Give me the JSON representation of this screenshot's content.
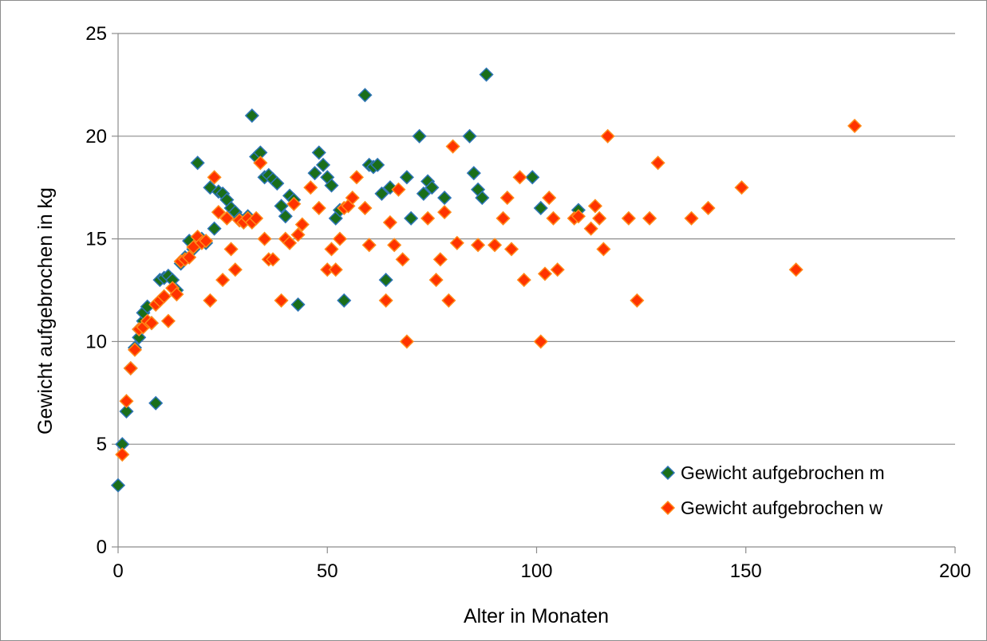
{
  "chart_data": {
    "type": "scatter",
    "title": "",
    "xlabel": "Alter in Monaten",
    "ylabel": "Gewicht aufgebrochen in kg",
    "xlim": [
      0,
      200
    ],
    "ylim": [
      0,
      25
    ],
    "xticks": [
      0,
      50,
      100,
      150,
      200
    ],
    "yticks": [
      0,
      5,
      10,
      15,
      20,
      25
    ],
    "grid": "horizontal",
    "legend_position": "bottom-right",
    "marker": "diamond",
    "series": [
      {
        "name": "Gewicht aufgebrochen m",
        "color": "#1a6e1a",
        "stroke": "#2e75b6",
        "points": [
          [
            0,
            3
          ],
          [
            1,
            5
          ],
          [
            2,
            6.6
          ],
          [
            3,
            8.7
          ],
          [
            4,
            9.7
          ],
          [
            5,
            10.2
          ],
          [
            5,
            10.6
          ],
          [
            6,
            11
          ],
          [
            6,
            11.4
          ],
          [
            7,
            11.7
          ],
          [
            8,
            10.9
          ],
          [
            9,
            7
          ],
          [
            10,
            13
          ],
          [
            11,
            13.1
          ],
          [
            12,
            13.2
          ],
          [
            13,
            13
          ],
          [
            14,
            12.5
          ],
          [
            15,
            13.8
          ],
          [
            16,
            14.1
          ],
          [
            17,
            14.9
          ],
          [
            18,
            14.5
          ],
          [
            19,
            18.7
          ],
          [
            20,
            15
          ],
          [
            21,
            14.8
          ],
          [
            22,
            17.5
          ],
          [
            23,
            15.5
          ],
          [
            24,
            17.3
          ],
          [
            25,
            17.2
          ],
          [
            26,
            16.9
          ],
          [
            27,
            16.5
          ],
          [
            28,
            16.3
          ],
          [
            29,
            16
          ],
          [
            30,
            15.8
          ],
          [
            31,
            16.1
          ],
          [
            32,
            21
          ],
          [
            33,
            19
          ],
          [
            34,
            19.2
          ],
          [
            35,
            18
          ],
          [
            36,
            18.1
          ],
          [
            37,
            17.9
          ],
          [
            38,
            17.7
          ],
          [
            39,
            16.6
          ],
          [
            40,
            16.1
          ],
          [
            41,
            17.1
          ],
          [
            42,
            16.9
          ],
          [
            43,
            11.8
          ],
          [
            47,
            18.2
          ],
          [
            48,
            19.2
          ],
          [
            49,
            18.6
          ],
          [
            50,
            18
          ],
          [
            51,
            17.6
          ],
          [
            52,
            16
          ],
          [
            53,
            16.4
          ],
          [
            54,
            12
          ],
          [
            59,
            22
          ],
          [
            60,
            18.6
          ],
          [
            61,
            18.5
          ],
          [
            62,
            18.6
          ],
          [
            63,
            17.2
          ],
          [
            64,
            13
          ],
          [
            65,
            17.5
          ],
          [
            69,
            18
          ],
          [
            70,
            16
          ],
          [
            72,
            20
          ],
          [
            73,
            17.2
          ],
          [
            74,
            17.8
          ],
          [
            75,
            17.5
          ],
          [
            78,
            17
          ],
          [
            84,
            20
          ],
          [
            85,
            18.2
          ],
          [
            86,
            17.4
          ],
          [
            87,
            17
          ],
          [
            88,
            23
          ],
          [
            99,
            18
          ],
          [
            101,
            16.5
          ],
          [
            110,
            16.4
          ]
        ]
      },
      {
        "name": "Gewicht aufgebrochen w",
        "color": "#ff3300",
        "stroke": "#ff8a1a",
        "points": [
          [
            1,
            4.5
          ],
          [
            2,
            7.1
          ],
          [
            3,
            8.7
          ],
          [
            4,
            9.6
          ],
          [
            5,
            10.6
          ],
          [
            6,
            10.7
          ],
          [
            7,
            11
          ],
          [
            8,
            10.9
          ],
          [
            9,
            11.8
          ],
          [
            10,
            12
          ],
          [
            11,
            12.2
          ],
          [
            12,
            11
          ],
          [
            13,
            12.6
          ],
          [
            14,
            12.3
          ],
          [
            15,
            13.9
          ],
          [
            16,
            14
          ],
          [
            17,
            14.1
          ],
          [
            18,
            14.6
          ],
          [
            19,
            15.1
          ],
          [
            20,
            14.8
          ],
          [
            21,
            14.9
          ],
          [
            22,
            12
          ],
          [
            23,
            18
          ],
          [
            24,
            16.3
          ],
          [
            25,
            13
          ],
          [
            26,
            16
          ],
          [
            27,
            14.5
          ],
          [
            28,
            13.5
          ],
          [
            29,
            15.9
          ],
          [
            30,
            15.8
          ],
          [
            31,
            16
          ],
          [
            32,
            15.8
          ],
          [
            33,
            16
          ],
          [
            34,
            18.7
          ],
          [
            35,
            15
          ],
          [
            36,
            14
          ],
          [
            37,
            14
          ],
          [
            39,
            12
          ],
          [
            40,
            15
          ],
          [
            41,
            14.8
          ],
          [
            42,
            16.7
          ],
          [
            43,
            15.2
          ],
          [
            44,
            15.7
          ],
          [
            46,
            17.5
          ],
          [
            48,
            16.5
          ],
          [
            50,
            13.5
          ],
          [
            51,
            14.5
          ],
          [
            52,
            13.5
          ],
          [
            53,
            15
          ],
          [
            54,
            16.5
          ],
          [
            55,
            16.6
          ],
          [
            56,
            17
          ],
          [
            57,
            18
          ],
          [
            59,
            16.5
          ],
          [
            60,
            14.7
          ],
          [
            64,
            12
          ],
          [
            65,
            15.8
          ],
          [
            66,
            14.7
          ],
          [
            67,
            17.4
          ],
          [
            68,
            14
          ],
          [
            69,
            10
          ],
          [
            74,
            16
          ],
          [
            76,
            13
          ],
          [
            77,
            14
          ],
          [
            78,
            16.3
          ],
          [
            79,
            12
          ],
          [
            80,
            19.5
          ],
          [
            81,
            14.8
          ],
          [
            86,
            14.7
          ],
          [
            90,
            14.7
          ],
          [
            92,
            16
          ],
          [
            93,
            17
          ],
          [
            94,
            14.5
          ],
          [
            96,
            18
          ],
          [
            97,
            13
          ],
          [
            101,
            10
          ],
          [
            102,
            13.3
          ],
          [
            103,
            17
          ],
          [
            104,
            16
          ],
          [
            105,
            13.5
          ],
          [
            109,
            16
          ],
          [
            110,
            16.1
          ],
          [
            113,
            15.5
          ],
          [
            114,
            16.6
          ],
          [
            115,
            16
          ],
          [
            116,
            14.5
          ],
          [
            117,
            20
          ],
          [
            122,
            16
          ],
          [
            124,
            12
          ],
          [
            127,
            16
          ],
          [
            129,
            18.7
          ],
          [
            137,
            16
          ],
          [
            141,
            16.5
          ],
          [
            149,
            17.5
          ],
          [
            162,
            13.5
          ],
          [
            176,
            20.5
          ]
        ]
      }
    ]
  }
}
